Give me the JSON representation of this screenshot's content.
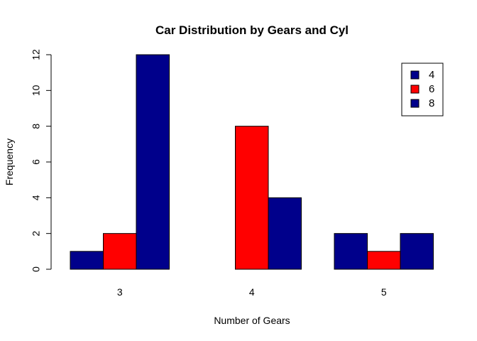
{
  "chart_data": {
    "type": "bar",
    "layout": "grouped",
    "title": "Car Distribution by Gears and Cyl",
    "xlabel": "Number of Gears",
    "ylabel": "Frequency",
    "categories": [
      "3",
      "4",
      "5"
    ],
    "series": [
      {
        "name": "4",
        "color": "#00008B",
        "values": [
          1,
          0,
          2
        ]
      },
      {
        "name": "6",
        "color": "#FF0000",
        "values": [
          2,
          8,
          1
        ]
      },
      {
        "name": "8",
        "color": "#00008B",
        "values": [
          12,
          4,
          2
        ]
      }
    ],
    "ylim": [
      0,
      12
    ],
    "yticks": [
      0,
      2,
      4,
      6,
      8,
      10,
      12
    ],
    "grid": false,
    "legend": "top-right"
  }
}
